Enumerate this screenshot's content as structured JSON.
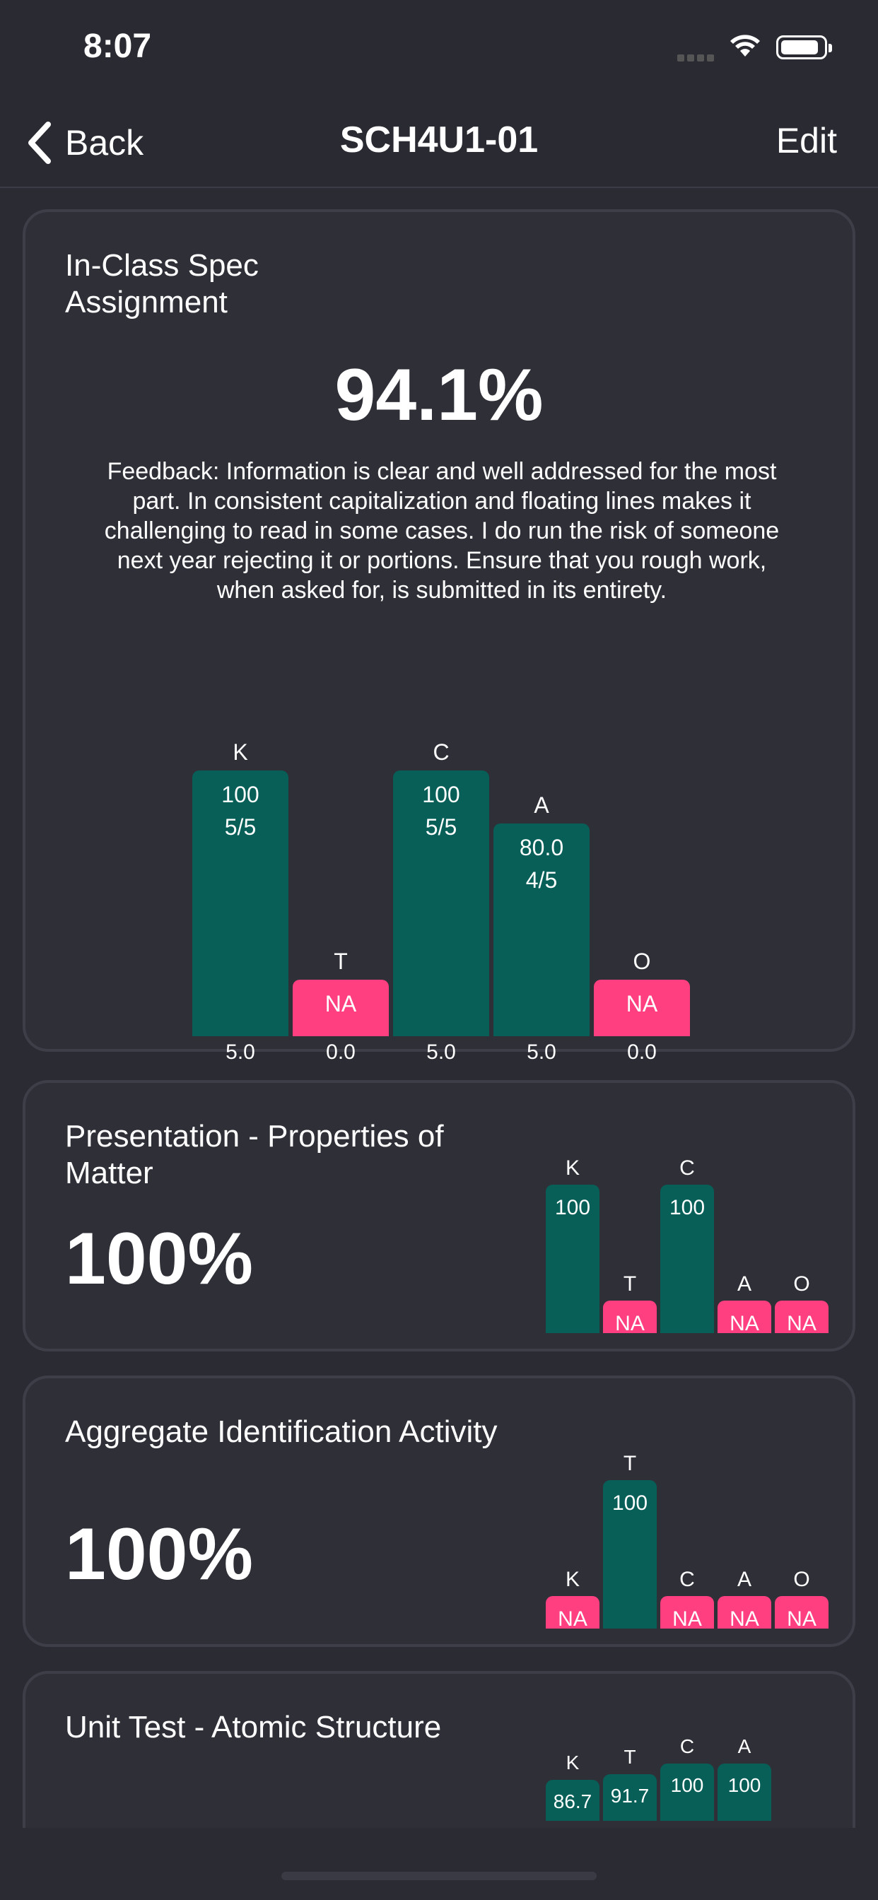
{
  "status": {
    "time": "8:07"
  },
  "nav": {
    "back_label": "Back",
    "title": "SCH4U1-01",
    "edit_label": "Edit"
  },
  "assignments": [
    {
      "title": "In-Class Spec Assignment",
      "score": "94.1%",
      "feedback": "Feedback: Information is clear and well addressed for the most part. In consistent capitalization and floating lines makes it challenging to read in some cases. I do run the risk of someone next year rejecting it or portions. Ensure that you rough work, when asked for, is submitted in its entirety.",
      "bars": [
        {
          "letter": "K",
          "value": "100",
          "fraction": "5/5",
          "weight": "5.0",
          "percent": 100,
          "status": "good"
        },
        {
          "letter": "T",
          "value": "NA",
          "fraction": "",
          "weight": "0.0",
          "percent": null,
          "status": "na"
        },
        {
          "letter": "C",
          "value": "100",
          "fraction": "5/5",
          "weight": "5.0",
          "percent": 100,
          "status": "good"
        },
        {
          "letter": "A",
          "value": "80.0",
          "fraction": "4/5",
          "weight": "5.0",
          "percent": 80,
          "status": "good"
        },
        {
          "letter": "O",
          "value": "NA",
          "fraction": "",
          "weight": "0.0",
          "percent": null,
          "status": "na"
        }
      ]
    },
    {
      "title": "Presentation - Properties of Matter",
      "score": "100%",
      "bars": [
        {
          "letter": "K",
          "value": "100",
          "percent": 100,
          "status": "good"
        },
        {
          "letter": "T",
          "value": "NA",
          "percent": null,
          "status": "na"
        },
        {
          "letter": "C",
          "value": "100",
          "percent": 100,
          "status": "good"
        },
        {
          "letter": "A",
          "value": "NA",
          "percent": null,
          "status": "na"
        },
        {
          "letter": "O",
          "value": "NA",
          "percent": null,
          "status": "na"
        }
      ]
    },
    {
      "title": "Aggregate Identification Activity",
      "score": "100%",
      "bars": [
        {
          "letter": "K",
          "value": "NA",
          "percent": null,
          "status": "na"
        },
        {
          "letter": "T",
          "value": "100",
          "percent": 100,
          "status": "good"
        },
        {
          "letter": "C",
          "value": "NA",
          "percent": null,
          "status": "na"
        },
        {
          "letter": "A",
          "value": "NA",
          "percent": null,
          "status": "na"
        },
        {
          "letter": "O",
          "value": "NA",
          "percent": null,
          "status": "na"
        }
      ]
    },
    {
      "title": "Unit Test - Atomic Structure",
      "bars": [
        {
          "letter": "K",
          "value": "86.7",
          "percent": 86.7,
          "status": "good"
        },
        {
          "letter": "T",
          "value": "91.7",
          "percent": 91.7,
          "status": "good"
        },
        {
          "letter": "C",
          "value": "100",
          "percent": 100,
          "status": "good"
        },
        {
          "letter": "A",
          "value": "100",
          "percent": 100,
          "status": "good"
        }
      ]
    }
  ],
  "colors": {
    "good": "#075f58",
    "na": "#ff3f80",
    "background": "#2b2b33",
    "card": "#2f2f38"
  }
}
